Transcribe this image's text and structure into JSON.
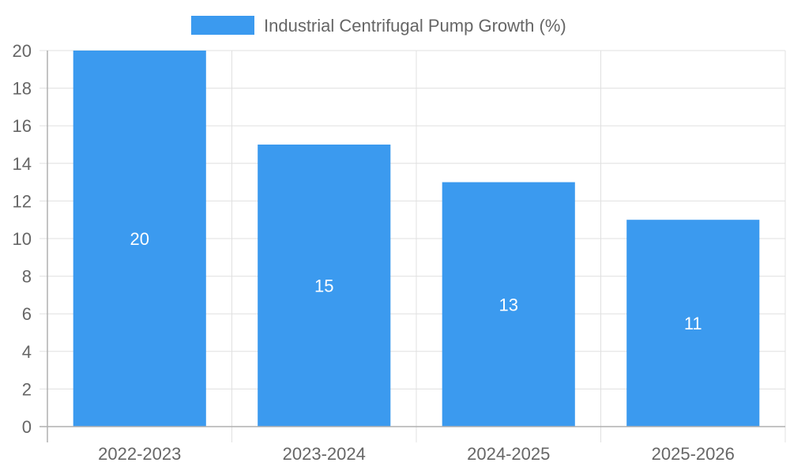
{
  "chart_data": {
    "type": "bar",
    "title": "",
    "xlabel": "",
    "ylabel": "",
    "categories": [
      "2022-2023",
      "2023-2024",
      "2024-2025",
      "2025-2026"
    ],
    "series": [
      {
        "name": "Industrial Centrifugal Pump Growth (%)",
        "values": [
          20,
          15,
          13,
          11
        ],
        "color": "#3b9aef"
      }
    ],
    "data_labels": [
      "20",
      "15",
      "13",
      "11"
    ],
    "ylim": [
      0,
      20
    ],
    "yticks": [
      0,
      2,
      4,
      6,
      8,
      10,
      12,
      14,
      16,
      18,
      20
    ],
    "ytick_labels": [
      "0",
      "2",
      "4",
      "6",
      "8",
      "10",
      "12",
      "14",
      "16",
      "18",
      "20"
    ],
    "grid": true,
    "legend_position": "top-center"
  }
}
